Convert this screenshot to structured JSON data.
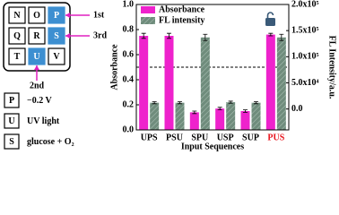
{
  "chart_data": {
    "type": "bar",
    "categories": [
      "UPS",
      "PSU",
      "SPU",
      "USP",
      "SUP",
      "PUS"
    ],
    "category_label_colors": [
      "#000000",
      "#000000",
      "#000000",
      "#000000",
      "#000000",
      "#e8121b"
    ],
    "series": [
      {
        "name": "Absorbance",
        "color": "#ee22cc",
        "values": [
          0.75,
          0.75,
          0.14,
          0.17,
          0.15,
          0.76
        ],
        "errors": [
          0.02,
          0.02,
          0.01,
          0.01,
          0.01,
          0.01
        ]
      },
      {
        "name": "FL intensity",
        "color": "#6f8c7c",
        "axis": "y2",
        "hatch": true,
        "values": [
          12000,
          12000,
          137000,
          13000,
          12000,
          137000
        ],
        "errors": [
          2000,
          2000,
          6000,
          2000,
          2000,
          6000
        ]
      }
    ],
    "ylim": [
      0,
      1
    ],
    "yticks": [
      {
        "value": 0,
        "label": "0.0"
      },
      0.2,
      0.4,
      0.6,
      0.8,
      {
        "value": 1,
        "label": "1.0"
      }
    ],
    "y2lim": [
      -40000,
      200000
    ],
    "y2ticks": [
      {
        "value": 0,
        "label": "0.0"
      },
      {
        "value": 50000,
        "label": "5.0x10⁴"
      },
      {
        "value": 100000,
        "label": "1.0x10⁵"
      },
      {
        "value": 150000,
        "label": "1.5x10⁵"
      },
      {
        "value": 200000,
        "label": "2.0x10⁵"
      }
    ],
    "ylabel": "Absorbance",
    "y2label": "FL Intensity/a.u.",
    "xlabel": "Input Sequences",
    "threshold": 0.5,
    "legend": "upper left"
  },
  "keypad": {
    "keys": [
      "N",
      "O",
      "P",
      "Q",
      "R",
      "S",
      "T",
      "U",
      "V"
    ],
    "highlight": [
      false,
      false,
      true,
      false,
      false,
      true,
      false,
      true,
      false
    ],
    "highlight_color": "#3d8fd1",
    "order_labels": [
      {
        "key": "P",
        "label": "1st"
      },
      {
        "key": "S",
        "label": "3rd"
      },
      {
        "key": "U",
        "label": "2nd"
      }
    ],
    "legend": [
      {
        "key": "P",
        "text": "−0.2 V"
      },
      {
        "key": "U",
        "text": "UV light"
      },
      {
        "key": "S",
        "text": "glucose + O₂"
      }
    ]
  }
}
